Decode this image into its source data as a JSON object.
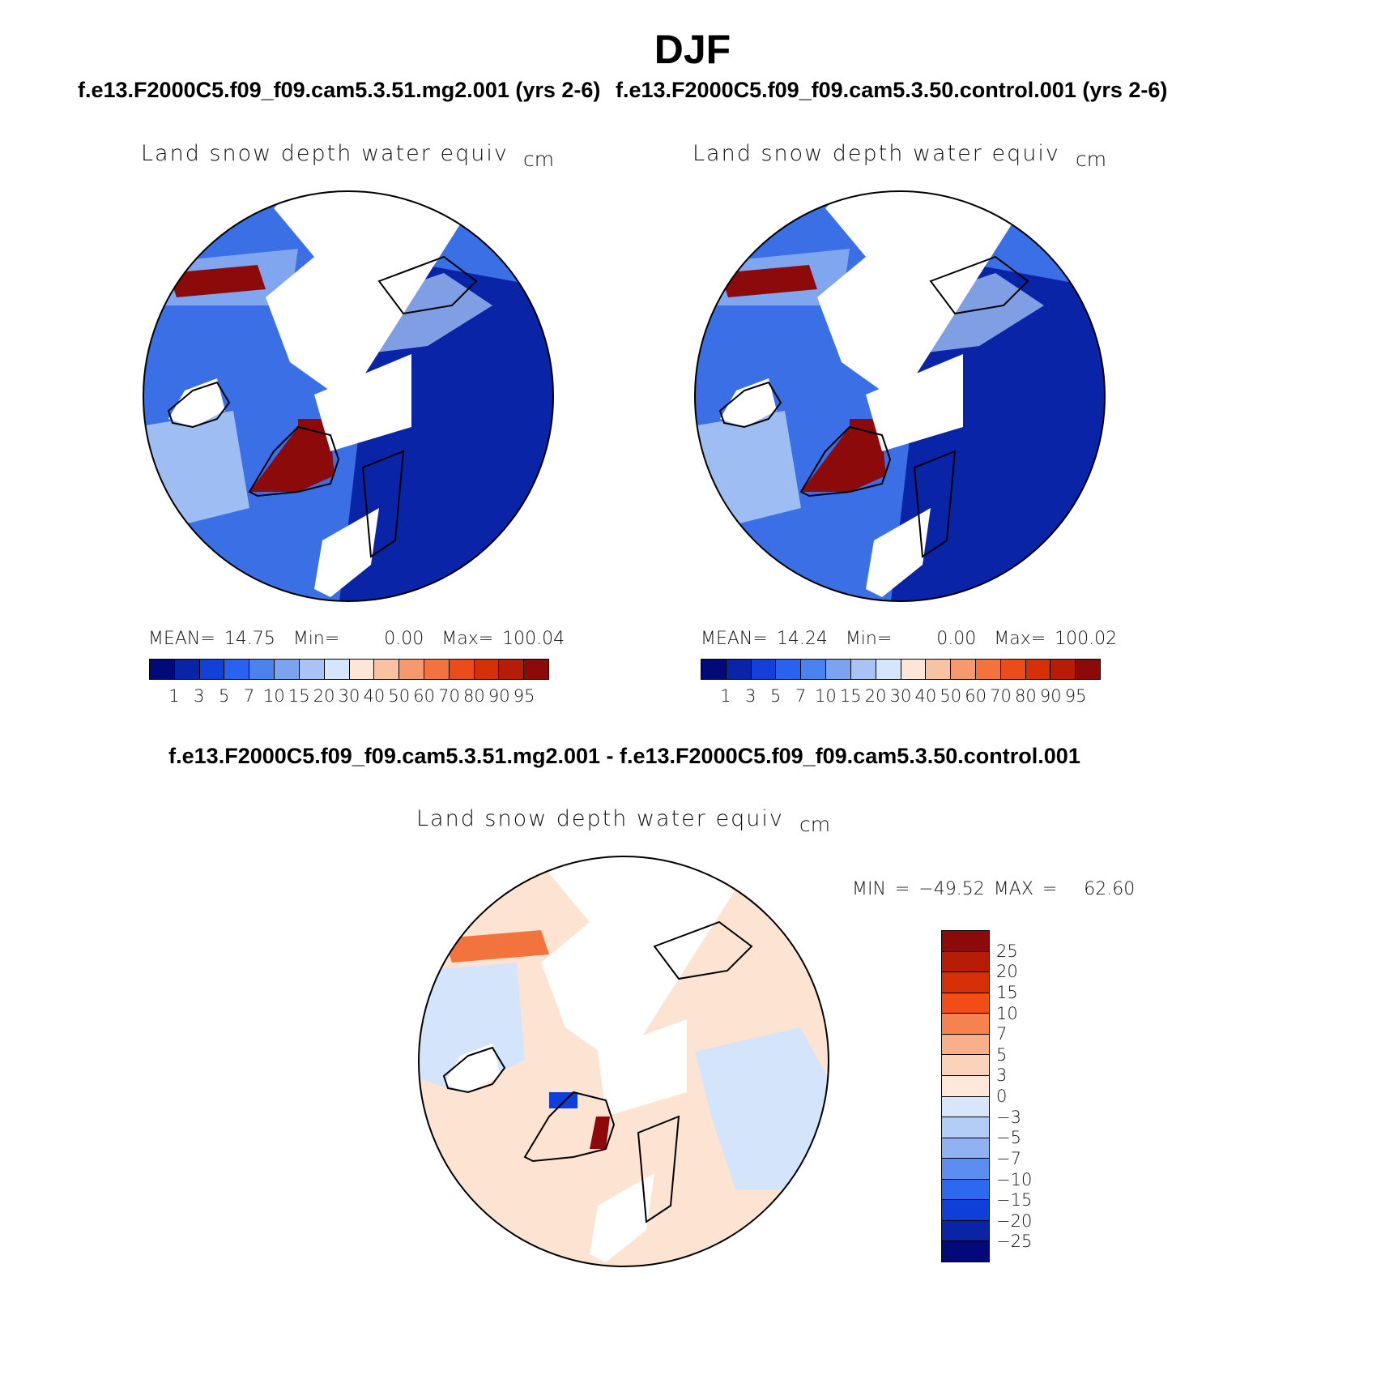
{
  "title": "DJF",
  "case1_title": "f.e13.F2000C5.f09_f09.cam5.3.51.mg2.001 (yrs 2-6)",
  "case2_title": "f.e13.F2000C5.f09_f09.cam5.3.50.control.001 (yrs 2-6)",
  "diff_title": "f.e13.F2000C5.f09_f09.cam5.3.51.mg2.001 - f.e13.F2000C5.f09_f09.cam5.3.50.control.001",
  "panels": [
    {
      "variable": "Land snow depth water equiv",
      "units": "cm",
      "stats": {
        "mean_label": "MEAN=",
        "mean": "14.75",
        "min_label": "Min=",
        "min": "0.00",
        "max_label": "Max=",
        "max": "100.04"
      }
    },
    {
      "variable": "Land snow depth water equiv",
      "units": "cm",
      "stats": {
        "mean_label": "MEAN=",
        "mean": "14.24",
        "min_label": "Min=",
        "min": "0.00",
        "max_label": "Max=",
        "max": "100.02"
      }
    },
    {
      "variable": "Land snow depth water equiv",
      "units": "cm",
      "stats": {
        "min_label": "MIN =",
        "min": "−49.52",
        "max_label": "MAX =",
        "max": "62.60"
      }
    }
  ],
  "colorbar_levels": [
    "1",
    "3",
    "5",
    "7",
    "10",
    "15",
    "20",
    "30",
    "40",
    "50",
    "60",
    "70",
    "80",
    "90",
    "95"
  ],
  "colorbar_colors": [
    "#020a7a",
    "#0a24a8",
    "#1240d8",
    "#2a62f0",
    "#4a82ee",
    "#7ca3f0",
    "#a9c4f4",
    "#d6e6fa",
    "#fde6d8",
    "#f9c3a3",
    "#f69a6d",
    "#f3733f",
    "#ec4c1a",
    "#d63008",
    "#b71d06",
    "#8c0a0a"
  ],
  "diff_levels": [
    "25",
    "20",
    "15",
    "10",
    "7",
    "5",
    "3",
    "0",
    "−3",
    "−5",
    "−7",
    "−10",
    "−15",
    "−20",
    "−25"
  ],
  "diff_colors": [
    "#8c0a0a",
    "#b71d06",
    "#d63008",
    "#f34d17",
    "#f6834f",
    "#f9b08a",
    "#fbd3ba",
    "#fde8d9",
    "#d7e6fa",
    "#b3cdf6",
    "#8fb2f2",
    "#5c8df0",
    "#2d68f0",
    "#0f3fd8",
    "#0a24a8",
    "#020a7a"
  ],
  "map_colors": {
    "land_snow": "#3a6fe6",
    "deep": "#0a24a8",
    "light": "#9ebdf2",
    "high": "#8c0a0a",
    "diff_pos": "#fde3d2",
    "diff_neg": "#d4e4fa"
  }
}
